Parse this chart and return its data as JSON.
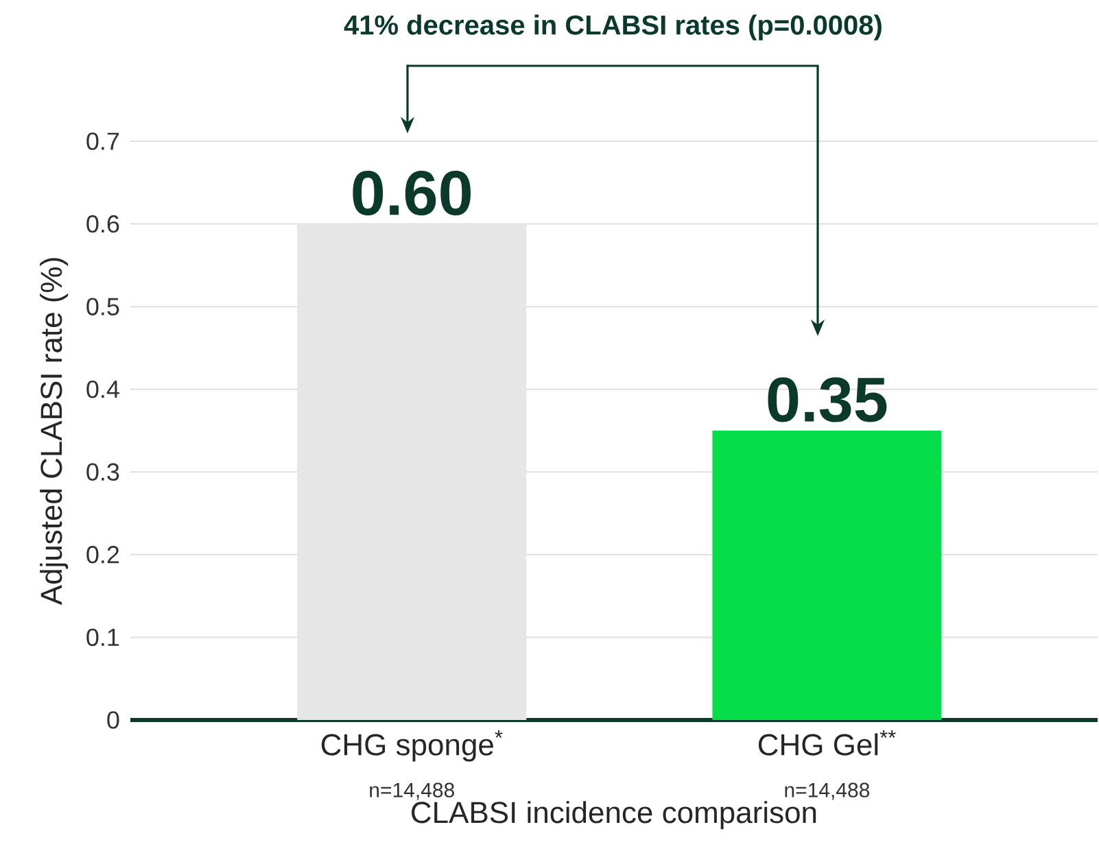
{
  "chart_data": {
    "type": "bar",
    "title": "41% decrease in CLABSI rates (p=0.0008)",
    "xlabel": "CLABSI incidence comparison",
    "ylabel": "Adjusted CLABSI rate (%)",
    "categories": [
      "CHG sponge$^{*}$",
      "CHG Gel$^{**}$"
    ],
    "values": [
      0.6,
      0.35
    ],
    "colors": [
      "#e6e6e6",
      "#06dd4a"
    ],
    "value_labels": [
      "0.60",
      "0.35"
    ],
    "annotations": [
      "n=14,488",
      "n=14,488"
    ],
    "ylim": [
      0,
      0.7
    ],
    "yticks": [
      0,
      0.1,
      0.2,
      0.3,
      0.4,
      0.5,
      0.6,
      0.7
    ],
    "grid": "y"
  }
}
